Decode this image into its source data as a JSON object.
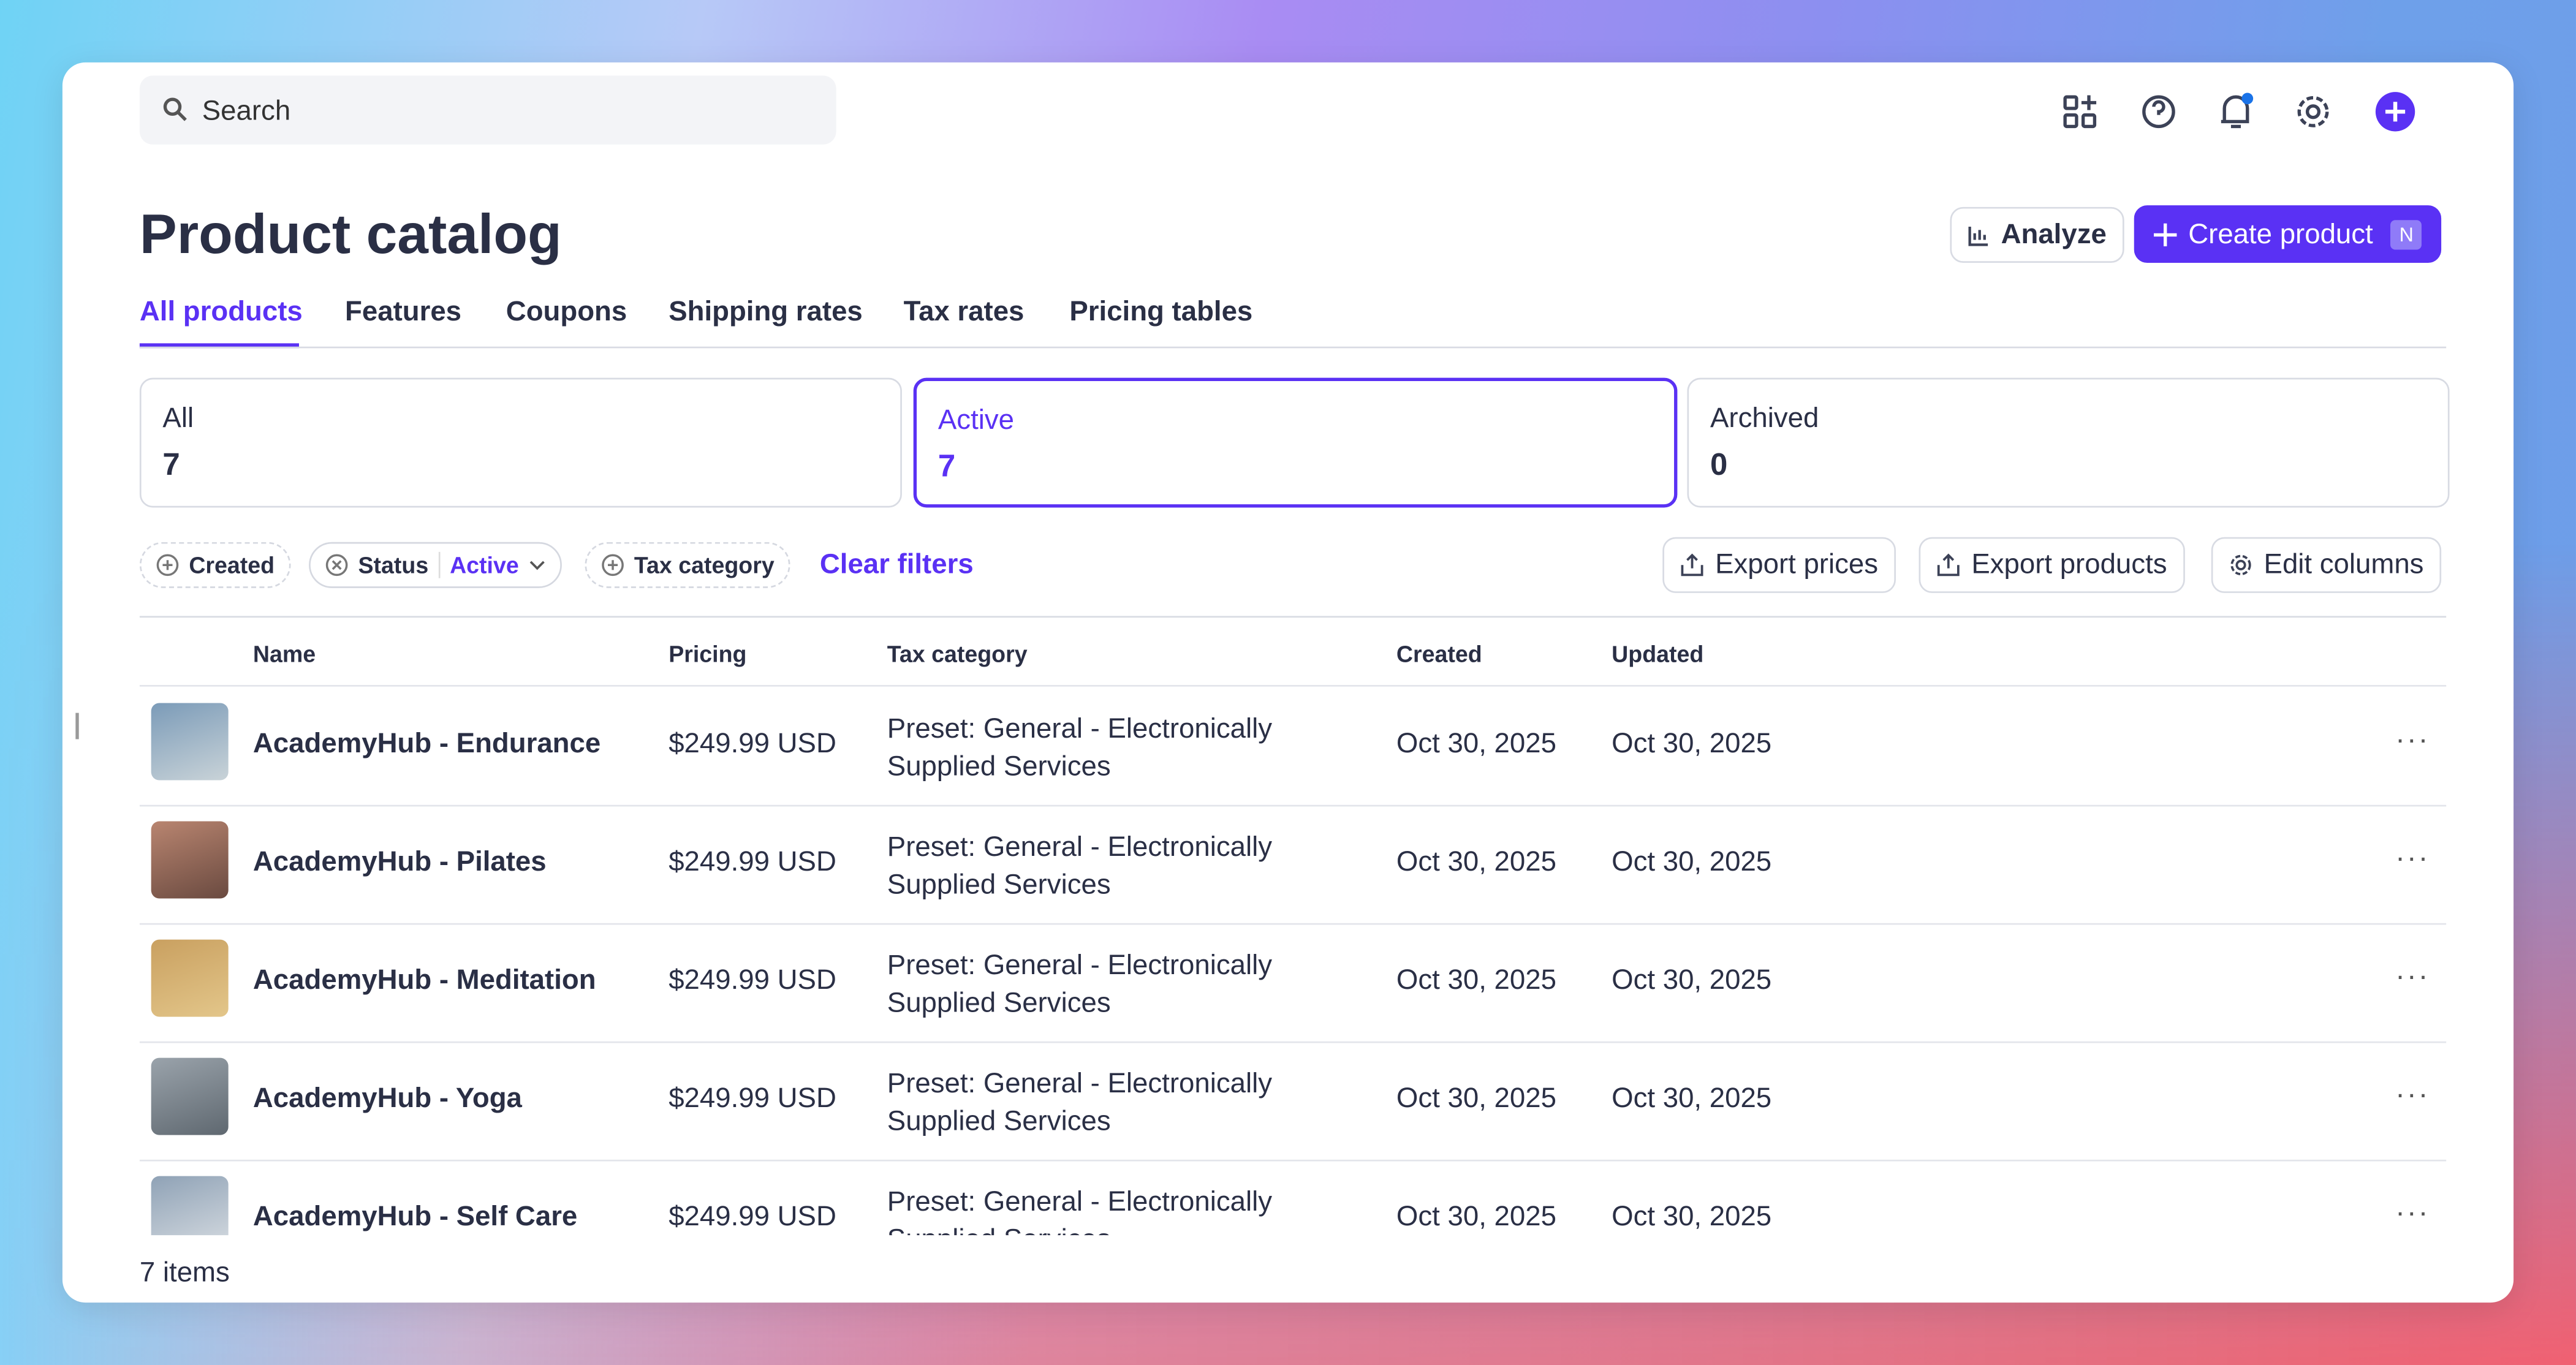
{
  "search": {
    "placeholder": "Search"
  },
  "header": {
    "title": "Product catalog",
    "analyze": "Analyze",
    "create": "Create product",
    "create_shortcut": "N"
  },
  "tabs": [
    "All products",
    "Features",
    "Coupons",
    "Shipping rates",
    "Tax rates",
    "Pricing tables"
  ],
  "status_cards": [
    {
      "label": "All",
      "count": "7"
    },
    {
      "label": "Active",
      "count": "7"
    },
    {
      "label": "Archived",
      "count": "0"
    }
  ],
  "filters": {
    "created": "Created",
    "status": "Status",
    "status_value": "Active",
    "tax_category": "Tax category",
    "clear": "Clear filters"
  },
  "actions": [
    "Export prices",
    "Export products",
    "Edit columns"
  ],
  "table": {
    "columns": [
      "Name",
      "Pricing",
      "Tax category",
      "Created",
      "Updated"
    ],
    "rows": [
      [
        "AcademyHub - Endurance",
        "$249.99 USD",
        "Preset: General - Electronically Supplied Services",
        "Oct 30, 2025",
        "Oct 30, 2025"
      ],
      [
        "AcademyHub - Pilates",
        "$249.99 USD",
        "Preset: General - Electronically Supplied Services",
        "Oct 30, 2025",
        "Oct 30, 2025"
      ],
      [
        "AcademyHub - Meditation",
        "$249.99 USD",
        "Preset: General - Electronically Supplied Services",
        "Oct 30, 2025",
        "Oct 30, 2025"
      ],
      [
        "AcademyHub - Yoga",
        "$249.99 USD",
        "Preset: General - Electronically Supplied Services",
        "Oct 30, 2025",
        "Oct 30, 2025"
      ],
      [
        "AcademyHub - Self Care",
        "$249.99 USD",
        "Preset: General - Electronically Supplied Services",
        "Oct 30, 2025",
        "Oct 30, 2025"
      ]
    ]
  },
  "footer": {
    "count": "7 items"
  }
}
